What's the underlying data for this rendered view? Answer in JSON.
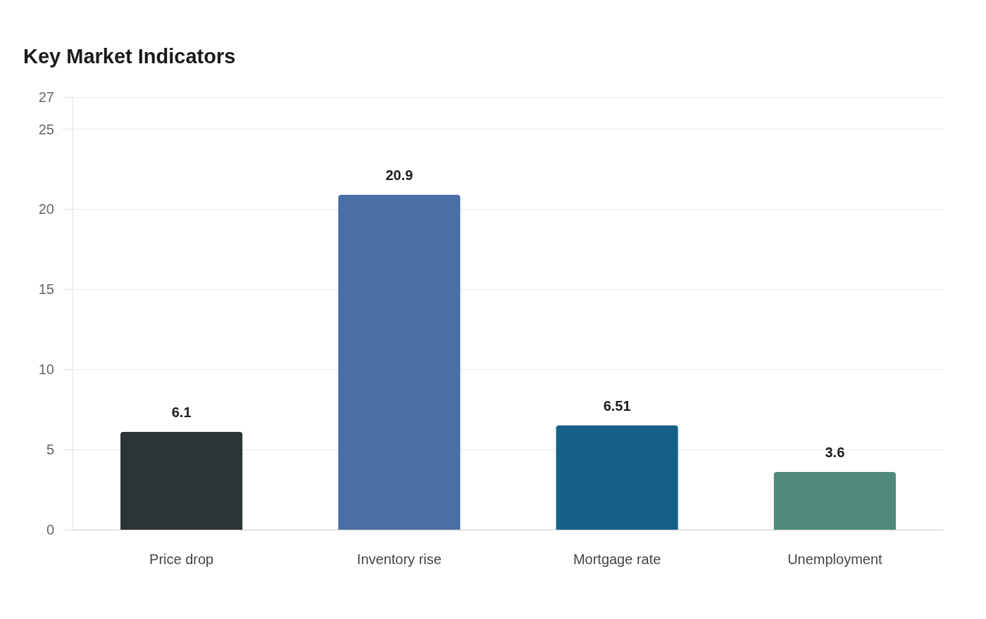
{
  "chart_data": {
    "type": "bar",
    "title": "Key Market Indicators",
    "categories": [
      "Price drop",
      "Inventory rise",
      "Mortgage rate",
      "Unemployment"
    ],
    "values": [
      6.1,
      20.9,
      6.51,
      3.6
    ],
    "colors": [
      "#2d3436",
      "#4a6fa5",
      "#166088",
      "#4f8a7a"
    ],
    "ylim": [
      0,
      27
    ],
    "yticks": [
      0,
      5,
      10,
      15,
      20,
      25,
      27
    ],
    "grid": true,
    "data_labels": true
  }
}
